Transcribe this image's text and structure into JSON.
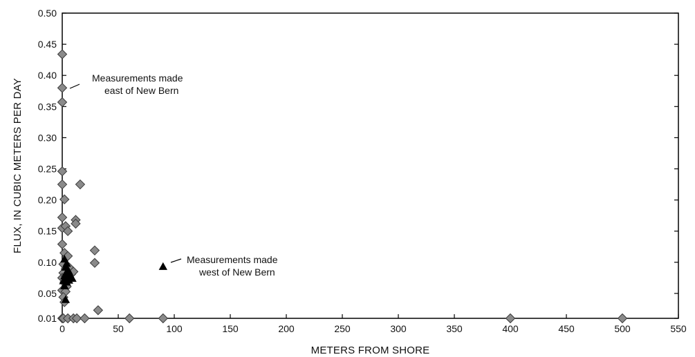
{
  "chart_data": {
    "type": "scatter",
    "xlabel": "METERS FROM SHORE",
    "ylabel": "FLUX, IN CUBIC METERS PER DAY",
    "xlim": [
      0,
      550
    ],
    "ylim": [
      0.01,
      0.5
    ],
    "x_ticks": [
      "0",
      "50",
      "100",
      "150",
      "200",
      "250",
      "300",
      "350",
      "400",
      "450",
      "500",
      "550"
    ],
    "x_tick_values": [
      0,
      50,
      100,
      150,
      200,
      250,
      300,
      350,
      400,
      450,
      500,
      550
    ],
    "y_ticks": [
      "0.01",
      "0.05",
      "0.10",
      "0.15",
      "0.20",
      "0.25",
      "0.30",
      "0.35",
      "0.40",
      "0.45",
      "0.50"
    ],
    "y_tick_values": [
      0.01,
      0.05,
      0.1,
      0.15,
      0.2,
      0.25,
      0.3,
      0.35,
      0.4,
      0.45,
      0.5
    ],
    "grid": false,
    "series": [
      {
        "marker": "diamond",
        "color": "#8a8a8a",
        "points": [
          [
            0,
            0.434
          ],
          [
            0,
            0.38
          ],
          [
            0,
            0.357
          ],
          [
            0,
            0.246
          ],
          [
            0,
            0.225
          ],
          [
            2,
            0.201
          ],
          [
            0,
            0.172
          ],
          [
            0,
            0.155
          ],
          [
            3,
            0.158
          ],
          [
            5,
            0.15
          ],
          [
            0,
            0.129
          ],
          [
            2,
            0.115
          ],
          [
            5,
            0.11
          ],
          [
            1,
            0.097
          ],
          [
            3,
            0.089
          ],
          [
            6,
            0.092
          ],
          [
            1,
            0.083
          ],
          [
            0,
            0.075
          ],
          [
            3,
            0.078
          ],
          [
            8,
            0.081
          ],
          [
            10,
            0.085
          ],
          [
            2,
            0.068
          ],
          [
            4,
            0.061
          ],
          [
            0,
            0.055
          ],
          [
            3,
            0.053
          ],
          [
            1,
            0.044
          ],
          [
            2,
            0.036
          ],
          [
            0,
            0.01
          ],
          [
            1,
            0.01
          ],
          [
            5,
            0.01
          ],
          [
            10,
            0.01
          ],
          [
            13,
            0.01
          ],
          [
            20,
            0.01
          ],
          [
            60,
            0.01
          ],
          [
            90,
            0.01
          ],
          [
            400,
            0.01
          ],
          [
            500,
            0.01
          ],
          [
            12,
            0.168
          ],
          [
            12,
            0.162
          ],
          [
            16,
            0.225
          ],
          [
            29,
            0.119
          ],
          [
            29,
            0.099
          ],
          [
            32,
            0.023
          ]
        ]
      },
      {
        "marker": "triangle",
        "color": "#000000",
        "points": [
          [
            2,
            0.105
          ],
          [
            4,
            0.098
          ],
          [
            3,
            0.092
          ],
          [
            5,
            0.088
          ],
          [
            6,
            0.085
          ],
          [
            4,
            0.082
          ],
          [
            7,
            0.08
          ],
          [
            2,
            0.078
          ],
          [
            5,
            0.076
          ],
          [
            8,
            0.075
          ],
          [
            3,
            0.072
          ],
          [
            6,
            0.071
          ],
          [
            9,
            0.074
          ],
          [
            1,
            0.07
          ],
          [
            4,
            0.068
          ],
          [
            2,
            0.062
          ],
          [
            3,
            0.04
          ],
          [
            90,
            0.093
          ]
        ]
      }
    ],
    "annotations": [
      {
        "lines": [
          "Measurements made",
          "east of New Bern"
        ],
        "pointer": [
          3,
          0.385
        ]
      },
      {
        "lines": [
          "Measurements made",
          "west of New Bern"
        ],
        "pointer": [
          93,
          0.093
        ]
      }
    ]
  }
}
